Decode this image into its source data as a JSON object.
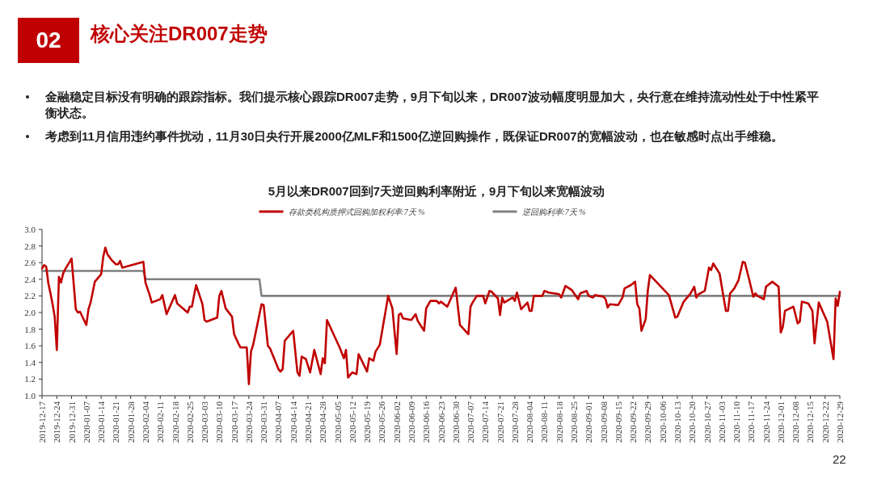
{
  "chart_data": {
    "type": "line",
    "title": "核心关注DR007走势",
    "subtitle": "5月以来DR007回到7天逆回购利率附近，9月下旬以来宽幅波动",
    "annotations": [
      "02",
      "金融稳定目标没有明确的跟踪指标。我们提示核心跟踪DR007走势，9月下旬以来，DR007波动幅度明显加大，央行意在维持流动性处于中性紧平衡状态。",
      "考虑到11月信用违约事件扰动，11月30日央行开展2000亿MLF和1500亿逆回购操作，既保证DR007的宽幅波动，也在敏感时点出手维稳。",
      "22"
    ],
    "legend": "top",
    "grid": false,
    "line_style": "solid",
    "xlim": [
      "2019-12-17",
      "2020-12-29"
    ],
    "xticks": [
      "2019-12-17",
      "2019-12-24",
      "2019-12-31",
      "2020-01-07",
      "2020-01-14",
      "2020-01-21",
      "2020-01-28",
      "2020-02-04",
      "2020-02-11",
      "2020-02-18",
      "2020-02-25",
      "2020-03-03",
      "2020-03-10",
      "2020-03-17",
      "2020-03-24",
      "2020-03-31",
      "2020-04-07",
      "2020-04-14",
      "2020-04-21",
      "2020-04-28",
      "2020-05-05",
      "2020-05-12",
      "2020-05-19",
      "2020-05-26",
      "2020-06-02",
      "2020-06-09",
      "2020-06-16",
      "2020-06-23",
      "2020-06-30",
      "2020-07-07",
      "2020-07-14",
      "2020-07-21",
      "2020-07-28",
      "2020-08-04",
      "2020-08-11",
      "2020-08-18",
      "2020-08-25",
      "2020-09-01",
      "2020-09-08",
      "2020-09-15",
      "2020-09-22",
      "2020-09-29",
      "2020-10-06",
      "2020-10-13",
      "2020-10-20",
      "2020-10-27",
      "2020-11-03",
      "2020-11-10",
      "2020-11-17",
      "2020-11-24",
      "2020-12-01",
      "2020-12-08",
      "2020-12-15",
      "2020-12-22",
      "2020-12-29"
    ],
    "ylim": [
      1.0,
      3.0
    ],
    "yticks": [
      {
        "value": 1.0,
        "label": "1.0"
      },
      {
        "value": 1.2,
        "label": "1.2"
      },
      {
        "value": 1.4,
        "label": "1.4"
      },
      {
        "value": 1.6,
        "label": "1.6"
      },
      {
        "value": 1.8,
        "label": "1.8"
      },
      {
        "value": 2.0,
        "label": "2.0"
      },
      {
        "value": 2.2,
        "label": "2.2"
      },
      {
        "value": 2.4,
        "label": "2.4"
      },
      {
        "value": 2.6,
        "label": "2.6"
      },
      {
        "value": 2.8,
        "label": "2.8"
      },
      {
        "value": 3.0,
        "label": "3.0"
      }
    ],
    "series": [
      {
        "name": "存款类机构质押式回购加权利率:7天 %",
        "color": "#c00000",
        "x": [
          "2019-12-17",
          "2019-12-18",
          "2019-12-19",
          "2019-12-20",
          "2019-12-21",
          "2019-12-22",
          "2019-12-23",
          "2019-12-24",
          "2019-12-25",
          "2019-12-26",
          "2019-12-27",
          "2019-12-28",
          "2019-12-31",
          "2020-01-02",
          "2020-01-03",
          "2020-01-04",
          "2020-01-07",
          "2020-01-08",
          "2020-01-09",
          "2020-01-11",
          "2020-01-14",
          "2020-01-15",
          "2020-01-16",
          "2020-01-17",
          "2020-01-19",
          "2020-01-21",
          "2020-01-22",
          "2020-01-23",
          "2020-01-24",
          "2020-02-03",
          "2020-02-04",
          "2020-02-06",
          "2020-02-07",
          "2020-02-11",
          "2020-02-12",
          "2020-02-14",
          "2020-02-18",
          "2020-02-19",
          "2020-02-24",
          "2020-02-25",
          "2020-02-26",
          "2020-02-28",
          "2020-03-02",
          "2020-03-03",
          "2020-03-04",
          "2020-03-06",
          "2020-03-09",
          "2020-03-10",
          "2020-03-11",
          "2020-03-13",
          "2020-03-16",
          "2020-03-17",
          "2020-03-19",
          "2020-03-20",
          "2020-03-23",
          "2020-03-24",
          "2020-03-25",
          "2020-03-26",
          "2020-03-30",
          "2020-03-31",
          "2020-04-02",
          "2020-04-03",
          "2020-04-07",
          "2020-04-08",
          "2020-04-09",
          "2020-04-10",
          "2020-04-14",
          "2020-04-16",
          "2020-04-17",
          "2020-04-18",
          "2020-04-20",
          "2020-04-22",
          "2020-04-24",
          "2020-04-27",
          "2020-04-28",
          "2020-04-29",
          "2020-04-30",
          "2020-05-06",
          "2020-05-08",
          "2020-05-09",
          "2020-05-10",
          "2020-05-12",
          "2020-05-14",
          "2020-05-15",
          "2020-05-19",
          "2020-05-20",
          "2020-05-22",
          "2020-05-23",
          "2020-05-25",
          "2020-05-29",
          "2020-05-31",
          "2020-06-02",
          "2020-06-03",
          "2020-06-04",
          "2020-06-05",
          "2020-06-09",
          "2020-06-11",
          "2020-06-12",
          "2020-06-15",
          "2020-06-16",
          "2020-06-18",
          "2020-06-21",
          "2020-06-22",
          "2020-06-23",
          "2020-06-26",
          "2020-06-30",
          "2020-07-02",
          "2020-07-06",
          "2020-07-07",
          "2020-07-08",
          "2020-07-10",
          "2020-07-13",
          "2020-07-14",
          "2020-07-16",
          "2020-07-17",
          "2020-07-20",
          "2020-07-21",
          "2020-07-22",
          "2020-07-23",
          "2020-07-27",
          "2020-07-28",
          "2020-07-29",
          "2020-07-31",
          "2020-08-03",
          "2020-08-04",
          "2020-08-05",
          "2020-08-06",
          "2020-08-10",
          "2020-08-11",
          "2020-08-13",
          "2020-08-18",
          "2020-08-19",
          "2020-08-21",
          "2020-08-24",
          "2020-08-27",
          "2020-08-28",
          "2020-08-31",
          "2020-09-01",
          "2020-09-03",
          "2020-09-04",
          "2020-09-08",
          "2020-09-09",
          "2020-09-10",
          "2020-09-11",
          "2020-09-15",
          "2020-09-17",
          "2020-09-18",
          "2020-09-21",
          "2020-09-23",
          "2020-09-24",
          "2020-09-25",
          "2020-09-26",
          "2020-09-28",
          "2020-09-29",
          "2020-09-30",
          "2020-10-09",
          "2020-10-12",
          "2020-10-13",
          "2020-10-16",
          "2020-10-18",
          "2020-10-19",
          "2020-10-21",
          "2020-10-22",
          "2020-10-23",
          "2020-10-26",
          "2020-10-28",
          "2020-10-29",
          "2020-10-30",
          "2020-11-02",
          "2020-11-05",
          "2020-11-06",
          "2020-11-07",
          "2020-11-09",
          "2020-11-11",
          "2020-11-13",
          "2020-11-14",
          "2020-11-16",
          "2020-11-18",
          "2020-11-19",
          "2020-11-20",
          "2020-11-23",
          "2020-11-24",
          "2020-11-27",
          "2020-11-30",
          "2020-12-01",
          "2020-12-02",
          "2020-12-03",
          "2020-12-07",
          "2020-12-09",
          "2020-12-10",
          "2020-12-11",
          "2020-12-14",
          "2020-12-16",
          "2020-12-17",
          "2020-12-19",
          "2020-12-23",
          "2020-12-26",
          "2020-12-27",
          "2020-12-28",
          "2020-12-29"
        ],
        "values": [
          2.53,
          2.57,
          2.55,
          2.35,
          2.23,
          2.1,
          1.95,
          1.55,
          2.43,
          2.36,
          2.47,
          2.52,
          2.65,
          2.04,
          2.0,
          2.01,
          1.85,
          2.04,
          2.12,
          2.37,
          2.46,
          2.67,
          2.78,
          2.7,
          2.63,
          2.58,
          2.58,
          2.62,
          2.54,
          2.61,
          2.36,
          2.21,
          2.12,
          2.16,
          2.21,
          1.98,
          2.21,
          2.11,
          2.0,
          2.07,
          2.07,
          2.33,
          2.1,
          1.91,
          1.89,
          1.91,
          1.94,
          2.2,
          2.26,
          2.05,
          1.95,
          1.74,
          1.63,
          1.58,
          1.58,
          1.14,
          1.53,
          1.61,
          2.1,
          2.09,
          1.6,
          1.57,
          1.32,
          1.29,
          1.32,
          1.66,
          1.78,
          1.28,
          1.24,
          1.47,
          1.44,
          1.28,
          1.55,
          1.26,
          1.45,
          1.39,
          1.91,
          1.58,
          1.45,
          1.55,
          1.22,
          1.28,
          1.26,
          1.5,
          1.29,
          1.45,
          1.42,
          1.53,
          1.61,
          2.2,
          2.05,
          1.5,
          1.97,
          1.99,
          1.93,
          1.91,
          1.98,
          1.9,
          1.78,
          2.05,
          2.14,
          2.14,
          2.11,
          2.13,
          2.07,
          2.3,
          1.85,
          1.74,
          2.07,
          2.12,
          2.2,
          2.2,
          2.11,
          2.26,
          2.25,
          2.17,
          1.97,
          2.18,
          2.12,
          2.18,
          2.14,
          2.24,
          2.04,
          2.12,
          2.02,
          2.02,
          2.2,
          2.2,
          2.26,
          2.24,
          2.22,
          2.18,
          2.32,
          2.27,
          2.16,
          2.23,
          2.26,
          2.2,
          2.18,
          2.21,
          2.19,
          2.16,
          2.06,
          2.1,
          2.09,
          2.18,
          2.29,
          2.33,
          2.37,
          2.1,
          2.05,
          1.78,
          1.92,
          2.26,
          2.45,
          2.21,
          1.94,
          1.95,
          2.13,
          2.19,
          2.22,
          2.31,
          2.18,
          2.22,
          2.26,
          2.54,
          2.51,
          2.59,
          2.47,
          2.02,
          2.02,
          2.23,
          2.29,
          2.39,
          2.61,
          2.6,
          2.4,
          2.19,
          2.23,
          2.2,
          2.16,
          2.31,
          2.37,
          2.31,
          1.76,
          1.83,
          2.02,
          2.07,
          1.87,
          1.89,
          2.13,
          2.11,
          2.02,
          1.63,
          2.12,
          1.89,
          1.44,
          2.17,
          2.08,
          2.25
        ]
      },
      {
        "name": "逆回购利率:7天 %",
        "color": "#808080",
        "x": [
          "2019-12-17",
          "2020-02-03",
          "2020-02-04",
          "2020-03-29",
          "2020-03-30",
          "2020-12-29"
        ],
        "values": [
          2.5,
          2.5,
          2.4,
          2.4,
          2.2,
          2.2
        ]
      }
    ]
  }
}
